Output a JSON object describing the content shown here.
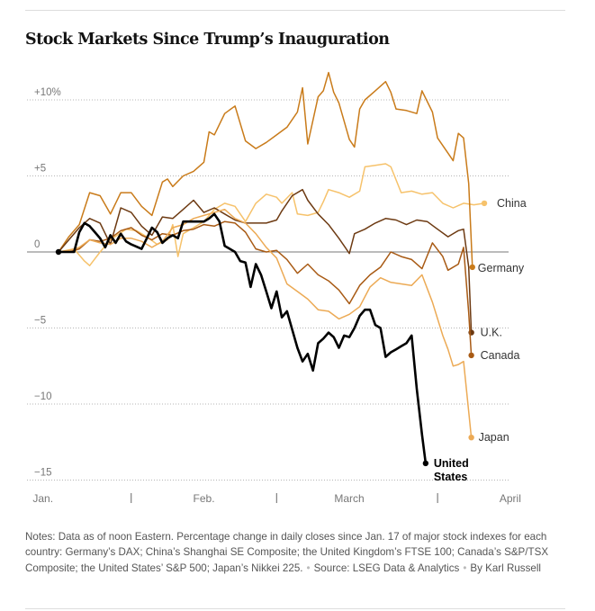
{
  "chart_data": {
    "type": "line",
    "title": "Stock Markets Since Trump’s Inauguration",
    "xlabel": "",
    "ylabel": "",
    "ylim": [
      -15,
      12
    ],
    "y_ticks": [
      {
        "value": 10,
        "label": "+10%"
      },
      {
        "value": 5,
        "label": "+5"
      },
      {
        "value": 0,
        "label": "0"
      },
      {
        "value": -5,
        "label": "−5"
      },
      {
        "value": -10,
        "label": "−10"
      },
      {
        "value": -15,
        "label": "−15"
      }
    ],
    "x_ticks": [
      {
        "day": 14,
        "label": "Jan."
      },
      {
        "day": 45,
        "label": "Feb."
      },
      {
        "day": 73,
        "label": "March"
      },
      {
        "day": 104,
        "label": "April"
      }
    ],
    "month_dividers": [
      31,
      59,
      90
    ],
    "x_range": [
      17,
      103
    ],
    "grid": true,
    "series": [
      {
        "name": "China",
        "color": "#f6c26b",
        "points": [
          [
            17,
            0
          ],
          [
            20,
            0.2
          ],
          [
            22,
            -0.6
          ],
          [
            23,
            -0.9
          ],
          [
            25,
            0
          ],
          [
            27,
            0.8
          ],
          [
            30,
            1.5
          ],
          [
            32,
            1.4
          ],
          [
            34,
            1.0
          ],
          [
            36,
            0.5
          ],
          [
            38,
            0.8
          ],
          [
            39,
            1.8
          ],
          [
            40,
            -0.3
          ],
          [
            41,
            1.2
          ],
          [
            43,
            1.6
          ],
          [
            45,
            2.0
          ],
          [
            47,
            2.8
          ],
          [
            49,
            3.2
          ],
          [
            51,
            3.0
          ],
          [
            53,
            2.0
          ],
          [
            55,
            3.2
          ],
          [
            57,
            3.8
          ],
          [
            59,
            3.6
          ],
          [
            60,
            3.2
          ],
          [
            62,
            3.9
          ],
          [
            63,
            2.5
          ],
          [
            65,
            2.4
          ],
          [
            67,
            2.6
          ],
          [
            68,
            3.3
          ],
          [
            69,
            4.1
          ],
          [
            71,
            3.9
          ],
          [
            73,
            3.6
          ],
          [
            75,
            4.0
          ],
          [
            76,
            5.6
          ],
          [
            78,
            5.7
          ],
          [
            80,
            5.8
          ],
          [
            81,
            5.6
          ],
          [
            83,
            3.9
          ],
          [
            85,
            4.0
          ],
          [
            87,
            3.8
          ],
          [
            89,
            3.9
          ],
          [
            91,
            3.2
          ],
          [
            93,
            2.9
          ],
          [
            95,
            3.2
          ],
          [
            97,
            3.1
          ],
          [
            99,
            3.2
          ]
        ]
      },
      {
        "name": "Germany",
        "color": "#c97b1a",
        "points": [
          [
            17,
            0
          ],
          [
            19,
            1.0
          ],
          [
            21,
            1.8
          ],
          [
            23,
            3.9
          ],
          [
            25,
            3.7
          ],
          [
            27,
            2.5
          ],
          [
            29,
            3.9
          ],
          [
            31,
            3.9
          ],
          [
            33,
            3.0
          ],
          [
            35,
            2.4
          ],
          [
            37,
            4.6
          ],
          [
            38,
            4.8
          ],
          [
            39,
            4.3
          ],
          [
            41,
            5.0
          ],
          [
            43,
            5.3
          ],
          [
            45,
            5.9
          ],
          [
            46,
            7.9
          ],
          [
            47,
            7.7
          ],
          [
            49,
            9.1
          ],
          [
            51,
            9.6
          ],
          [
            53,
            7.3
          ],
          [
            55,
            6.8
          ],
          [
            57,
            7.2
          ],
          [
            59,
            7.7
          ],
          [
            61,
            8.2
          ],
          [
            63,
            9.2
          ],
          [
            64,
            10.8
          ],
          [
            65,
            7.1
          ],
          [
            67,
            10.2
          ],
          [
            68,
            10.6
          ],
          [
            69,
            11.8
          ],
          [
            70,
            10.5
          ],
          [
            71,
            9.8
          ],
          [
            72,
            8.6
          ],
          [
            73,
            7.4
          ],
          [
            74,
            6.9
          ],
          [
            75,
            9.4
          ],
          [
            76,
            10.0
          ],
          [
            78,
            10.6
          ],
          [
            80,
            11.2
          ],
          [
            81,
            10.5
          ],
          [
            82,
            9.4
          ],
          [
            84,
            9.3
          ],
          [
            86,
            9.1
          ],
          [
            87,
            10.6
          ],
          [
            89,
            9.2
          ],
          [
            90,
            7.5
          ],
          [
            92,
            6.5
          ],
          [
            93,
            6.0
          ],
          [
            94,
            7.8
          ],
          [
            95,
            7.5
          ],
          [
            96,
            4.5
          ],
          [
            96.7,
            -1.0
          ]
        ]
      },
      {
        "name": "U.K.",
        "color": "#6d3a12",
        "points": [
          [
            17,
            0
          ],
          [
            19,
            0.8
          ],
          [
            21,
            1.6
          ],
          [
            23,
            2.2
          ],
          [
            25,
            1.9
          ],
          [
            27,
            0.5
          ],
          [
            29,
            2.9
          ],
          [
            31,
            2.6
          ],
          [
            33,
            1.7
          ],
          [
            35,
            1.1
          ],
          [
            37,
            2.3
          ],
          [
            39,
            2.2
          ],
          [
            41,
            2.8
          ],
          [
            43,
            3.4
          ],
          [
            45,
            2.6
          ],
          [
            47,
            2.9
          ],
          [
            49,
            2.5
          ],
          [
            51,
            2.1
          ],
          [
            53,
            1.9
          ],
          [
            55,
            1.9
          ],
          [
            57,
            1.9
          ],
          [
            59,
            2.1
          ],
          [
            60,
            2.7
          ],
          [
            62,
            3.7
          ],
          [
            64,
            4.1
          ],
          [
            65,
            3.4
          ],
          [
            67,
            2.5
          ],
          [
            69,
            1.8
          ],
          [
            71,
            0.9
          ],
          [
            73,
            -0.1
          ],
          [
            74,
            1.2
          ],
          [
            76,
            1.5
          ],
          [
            78,
            1.9
          ],
          [
            80,
            2.2
          ],
          [
            82,
            2.1
          ],
          [
            84,
            1.8
          ],
          [
            86,
            2.1
          ],
          [
            88,
            2.0
          ],
          [
            90,
            1.5
          ],
          [
            92,
            1.0
          ],
          [
            94,
            1.4
          ],
          [
            95,
            1.5
          ],
          [
            96,
            -1.0
          ],
          [
            96.5,
            -5.3
          ]
        ]
      },
      {
        "name": "Canada",
        "color": "#a85a14",
        "points": [
          [
            17,
            0
          ],
          [
            19,
            0
          ],
          [
            21,
            0.2
          ],
          [
            23,
            0.8
          ],
          [
            25,
            0.7
          ],
          [
            27,
            0.9
          ],
          [
            29,
            1.4
          ],
          [
            31,
            1.6
          ],
          [
            33,
            1.1
          ],
          [
            35,
            0.8
          ],
          [
            37,
            1.2
          ],
          [
            39,
            1.1
          ],
          [
            41,
            1.4
          ],
          [
            43,
            1.5
          ],
          [
            45,
            1.8
          ],
          [
            47,
            1.7
          ],
          [
            49,
            2.0
          ],
          [
            51,
            1.9
          ],
          [
            53,
            1.3
          ],
          [
            55,
            0.2
          ],
          [
            57,
            0
          ],
          [
            59,
            0.1
          ],
          [
            61,
            -0.5
          ],
          [
            63,
            -1.4
          ],
          [
            65,
            -0.8
          ],
          [
            67,
            -1.5
          ],
          [
            69,
            -1.9
          ],
          [
            71,
            -2.5
          ],
          [
            73,
            -3.4
          ],
          [
            75,
            -2.2
          ],
          [
            77,
            -1.5
          ],
          [
            79,
            -1.0
          ],
          [
            81,
            0
          ],
          [
            83,
            -0.3
          ],
          [
            85,
            -0.5
          ],
          [
            87,
            -1.1
          ],
          [
            89,
            0.6
          ],
          [
            91,
            -0.3
          ],
          [
            92,
            -1.2
          ],
          [
            94,
            -0.8
          ],
          [
            95,
            0.3
          ],
          [
            96,
            -4.0
          ],
          [
            96.5,
            -6.8
          ]
        ]
      },
      {
        "name": "Japan",
        "color": "#ecaa55",
        "points": [
          [
            17,
            0
          ],
          [
            19,
            0.1
          ],
          [
            21,
            0.3
          ],
          [
            23,
            0.8
          ],
          [
            25,
            0.6
          ],
          [
            27,
            0.5
          ],
          [
            29,
            0.9
          ],
          [
            31,
            0.9
          ],
          [
            33,
            0.7
          ],
          [
            35,
            0.3
          ],
          [
            37,
            0.7
          ],
          [
            39,
            1.6
          ],
          [
            41,
            1.8
          ],
          [
            43,
            2.2
          ],
          [
            45,
            2.4
          ],
          [
            47,
            2.6
          ],
          [
            49,
            2.8
          ],
          [
            51,
            2.2
          ],
          [
            53,
            1.9
          ],
          [
            55,
            1.2
          ],
          [
            57,
            0.3
          ],
          [
            59,
            -0.4
          ],
          [
            61,
            -2.1
          ],
          [
            63,
            -2.6
          ],
          [
            65,
            -3.1
          ],
          [
            67,
            -3.8
          ],
          [
            69,
            -3.9
          ],
          [
            71,
            -4.4
          ],
          [
            73,
            -4.1
          ],
          [
            75,
            -3.6
          ],
          [
            77,
            -2.3
          ],
          [
            79,
            -1.7
          ],
          [
            81,
            -2.0
          ],
          [
            83,
            -2.1
          ],
          [
            85,
            -2.2
          ],
          [
            87,
            -1.5
          ],
          [
            89,
            -3.3
          ],
          [
            91,
            -5.5
          ],
          [
            92,
            -6.4
          ],
          [
            93,
            -7.5
          ],
          [
            94,
            -7.4
          ],
          [
            95,
            -7.2
          ],
          [
            96,
            -10.5
          ],
          [
            96.5,
            -12.2
          ]
        ]
      },
      {
        "name": "United States",
        "color": "#000000",
        "points": [
          [
            17,
            0
          ],
          [
            18,
            0
          ],
          [
            20,
            0
          ],
          [
            21,
            1.3
          ],
          [
            22,
            1.9
          ],
          [
            23,
            1.7
          ],
          [
            24,
            1.3
          ],
          [
            25,
            0.9
          ],
          [
            26,
            0.3
          ],
          [
            27,
            1.1
          ],
          [
            28,
            0.6
          ],
          [
            29,
            1.2
          ],
          [
            30,
            0.7
          ],
          [
            31,
            0.5
          ],
          [
            33,
            0.2
          ],
          [
            34,
            0.9
          ],
          [
            35,
            1.6
          ],
          [
            36,
            1.3
          ],
          [
            37,
            0.6
          ],
          [
            38,
            0.9
          ],
          [
            39,
            1.1
          ],
          [
            40,
            0.9
          ],
          [
            41,
            2.0
          ],
          [
            42,
            2.0
          ],
          [
            43,
            2.0
          ],
          [
            44,
            2.0
          ],
          [
            45,
            2.0
          ],
          [
            46,
            2.2
          ],
          [
            47,
            2.5
          ],
          [
            48,
            2.0
          ],
          [
            49,
            0.4
          ],
          [
            50,
            0.2
          ],
          [
            51,
            0
          ],
          [
            52,
            -0.6
          ],
          [
            53,
            -0.7
          ],
          [
            54,
            -2.3
          ],
          [
            55,
            -0.8
          ],
          [
            56,
            -1.5
          ],
          [
            57,
            -2.6
          ],
          [
            58,
            -3.7
          ],
          [
            59,
            -2.6
          ],
          [
            60,
            -4.3
          ],
          [
            61,
            -3.9
          ],
          [
            62,
            -5.1
          ],
          [
            63,
            -6.3
          ],
          [
            64,
            -7.2
          ],
          [
            65,
            -6.7
          ],
          [
            66,
            -7.8
          ],
          [
            67,
            -6.0
          ],
          [
            68,
            -5.7
          ],
          [
            69,
            -5.3
          ],
          [
            70,
            -5.6
          ],
          [
            71,
            -6.3
          ],
          [
            72,
            -5.5
          ],
          [
            73,
            -5.6
          ],
          [
            74,
            -5.0
          ],
          [
            75,
            -4.2
          ],
          [
            76,
            -3.8
          ],
          [
            77,
            -3.8
          ],
          [
            78,
            -4.8
          ],
          [
            79,
            -5.0
          ],
          [
            80,
            -6.9
          ],
          [
            81,
            -6.6
          ],
          [
            82,
            -6.4
          ],
          [
            83,
            -6.2
          ],
          [
            84,
            -6.0
          ],
          [
            85,
            -5.5
          ],
          [
            86,
            -9.0
          ],
          [
            87,
            -12.0
          ],
          [
            87.7,
            -13.9
          ]
        ]
      }
    ],
    "end_labels": [
      {
        "series": "China",
        "lines": [
          "China"
        ]
      },
      {
        "series": "Germany",
        "lines": [
          "Germany"
        ]
      },
      {
        "series": "U.K.",
        "lines": [
          "U.K."
        ]
      },
      {
        "series": "Canada",
        "lines": [
          "Canada"
        ]
      },
      {
        "series": "Japan",
        "lines": [
          "Japan"
        ]
      },
      {
        "series": "United States",
        "lines": [
          "United",
          "States"
        ],
        "bold": true
      }
    ]
  },
  "notes": {
    "text": "Notes: Data as of noon Eastern. Percentage change in daily closes since Jan. 17 of major stock indexes for each country: Germany’s DAX; China’s Shanghai SE Composite; the United Kingdom’s FTSE 100; Canada’s S&P/TSX Composite; the United States’ S&P 500; Japan’s Nikkei 225.",
    "source": "Source: LSEG Data & Analytics",
    "byline": "By Karl Russell"
  }
}
